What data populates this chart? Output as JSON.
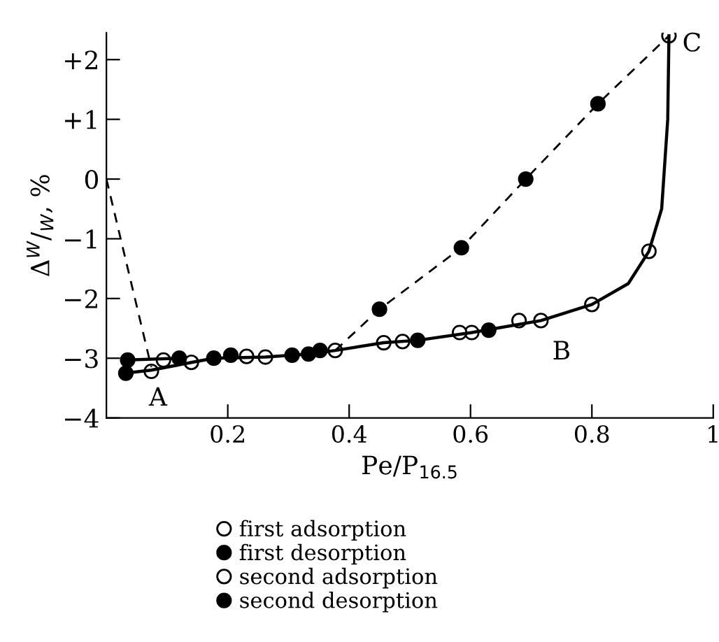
{
  "chart_data": {
    "type": "scatter",
    "xlabel": "Pe/P$_{16.5}$",
    "ylabel": "Δ$^{W}$/$_{W}$, %",
    "xlim": [
      0,
      1.0
    ],
    "xticks": [
      0.2,
      0.4,
      0.6,
      0.8,
      1
    ],
    "ylim": [
      -4,
      2.45
    ],
    "yticks": [
      {
        "value": -4,
        "label": "−4"
      },
      {
        "value": -3,
        "label": "−3"
      },
      {
        "value": -2,
        "label": "−2"
      },
      {
        "value": -1,
        "label": "−1"
      },
      0,
      {
        "value": 1,
        "label": "+1"
      },
      {
        "value": 2,
        "label": "+2"
      }
    ],
    "grid": false,
    "legend": "bottom",
    "annotations": [
      "A",
      "B",
      "C"
    ],
    "series": [
      {
        "type": "line",
        "color": "#000000",
        "line_style": "solid",
        "x": [
          0.032,
          0.074,
          0.14,
          0.177,
          0.262,
          0.333,
          0.377,
          0.457,
          0.513,
          0.602,
          0.716,
          0.8,
          0.86,
          0.894,
          0.915,
          0.925,
          0.927
        ],
        "values": [
          -3.25,
          -3.2,
          -3.07,
          -3.0,
          -2.98,
          -2.93,
          -2.87,
          -2.74,
          -2.7,
          -2.57,
          -2.37,
          -2.1,
          -1.75,
          -1.21,
          -0.5,
          1.0,
          2.4
        ]
      },
      {
        "type": "line",
        "color": "#000000",
        "line_style": "solid",
        "x": [
          0.035,
          0.12
        ],
        "values": [
          -3.03,
          -3.0
        ]
      },
      {
        "type": "line",
        "color": "#000000",
        "line_style": "dashed",
        "x": [
          0.0,
          0.074
        ],
        "values": [
          0.0,
          -3.15
        ]
      },
      {
        "type": "line",
        "color": "#000000",
        "line_style": "dashed",
        "x": [
          0.377,
          0.45,
          0.585,
          0.691,
          0.81,
          0.927
        ],
        "values": [
          -2.87,
          -2.18,
          -1.15,
          0.0,
          1.26,
          2.4
        ]
      },
      {
        "name": "first adsorption",
        "color": "#ffffff",
        "marker": "circle",
        "x": [
          0.074,
          0.14,
          0.262,
          0.457,
          0.602,
          0.716
        ],
        "values": [
          -3.22,
          -3.07,
          -2.98,
          -2.74,
          -2.57,
          -2.37
        ]
      },
      {
        "name": "first desorption",
        "color": "#000000",
        "marker": "circle",
        "x": [
          0.032,
          0.177,
          0.333,
          0.513,
          0.63
        ],
        "values": [
          -3.25,
          -3.0,
          -2.93,
          -2.7,
          -2.53
        ]
      },
      {
        "name": "second adsorption",
        "color": "#ffffff",
        "marker": "circle",
        "x": [
          0.094,
          0.231,
          0.377,
          0.488,
          0.582,
          0.68,
          0.8,
          0.894,
          0.927
        ],
        "values": [
          -3.03,
          -2.97,
          -2.87,
          -2.72,
          -2.57,
          -2.37,
          -2.1,
          -1.21,
          2.4
        ]
      },
      {
        "name": "second desorption",
        "color": "#000000",
        "marker": "circle",
        "x": [
          0.035,
          0.12,
          0.205,
          0.306,
          0.352,
          0.45,
          0.585,
          0.691,
          0.81
        ],
        "values": [
          -3.03,
          -3.0,
          -2.95,
          -2.95,
          -2.87,
          -2.18,
          -1.15,
          0.0,
          1.26
        ]
      }
    ]
  }
}
